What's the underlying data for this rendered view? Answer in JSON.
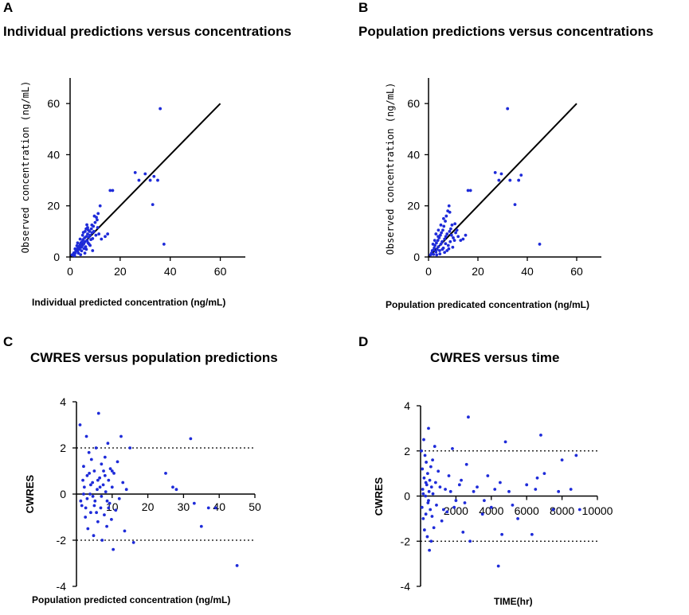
{
  "panels": [
    {
      "letter": "A",
      "title": "Individual predictions versus concentrations",
      "xlabel": "Individual predicted concentration (ng/mL)"
    },
    {
      "letter": "B",
      "title": "Population predictions versus concentrations",
      "xlabel": "Population predicated concentration (ng/mL)"
    },
    {
      "letter": "C",
      "title": "CWRES versus population predictions",
      "xlabel": "Population predicted concentration (ng/mL)"
    },
    {
      "letter": "D",
      "title": "CWRES versus time",
      "xlabel": "TIME(hr)"
    }
  ],
  "colors": {
    "points": "#1e2bd9",
    "line": "#000000",
    "axis": "#000000"
  },
  "chart_data": [
    {
      "type": "scatter",
      "title": "Individual predictions versus concentrations",
      "xlabel": "Individual predicted concentration (ng/mL)",
      "ylabel": "Observed concentration (ng/mL)",
      "xlim": [
        0,
        70
      ],
      "ylim": [
        0,
        70
      ],
      "xticks": [
        "0",
        "20",
        "40",
        "60"
      ],
      "yticks": [
        "0",
        "20",
        "40",
        "60"
      ],
      "reference_line": {
        "from": [
          0,
          0
        ],
        "to": [
          60,
          60
        ]
      },
      "points": [
        [
          0.8,
          0.8
        ],
        [
          1.2,
          1.0
        ],
        [
          1.5,
          1.6
        ],
        [
          2.0,
          1.5
        ],
        [
          2.3,
          2.5
        ],
        [
          2.6,
          3.0
        ],
        [
          3.0,
          2.2
        ],
        [
          3.2,
          3.6
        ],
        [
          3.5,
          4.2
        ],
        [
          3.8,
          3.0
        ],
        [
          4.0,
          4.8
        ],
        [
          4.3,
          5.5
        ],
        [
          4.5,
          3.8
        ],
        [
          4.8,
          6.0
        ],
        [
          5.0,
          4.5
        ],
        [
          5.2,
          6.8
        ],
        [
          5.5,
          5.2
        ],
        [
          5.8,
          7.5
        ],
        [
          6.0,
          6.0
        ],
        [
          6.2,
          4.0
        ],
        [
          6.5,
          8.0
        ],
        [
          6.8,
          6.5
        ],
        [
          7.0,
          9.0
        ],
        [
          7.2,
          5.5
        ],
        [
          7.5,
          7.8
        ],
        [
          7.8,
          10.0
        ],
        [
          8.0,
          8.5
        ],
        [
          8.3,
          6.8
        ],
        [
          8.5,
          11.0
        ],
        [
          8.8,
          9.5
        ],
        [
          9.0,
          7.2
        ],
        [
          9.3,
          12.0
        ],
        [
          9.5,
          10.0
        ],
        [
          10.0,
          13.5
        ],
        [
          10.3,
          8.5
        ],
        [
          10.5,
          15.5
        ],
        [
          11.0,
          11.5
        ],
        [
          11.2,
          17.0
        ],
        [
          11.5,
          9.0
        ],
        [
          12.0,
          20.0
        ],
        [
          3.0,
          5.5
        ],
        [
          4.0,
          7.0
        ],
        [
          5.0,
          8.5
        ],
        [
          6.0,
          10.0
        ],
        [
          7.0,
          11.5
        ],
        [
          6.5,
          3.0
        ],
        [
          8.0,
          4.5
        ],
        [
          9.0,
          2.5
        ],
        [
          2.0,
          3.2
        ],
        [
          1.8,
          0.5
        ],
        [
          3.3,
          1.5
        ],
        [
          4.6,
          2.4
        ],
        [
          5.6,
          3.3
        ],
        [
          7.3,
          10.5
        ],
        [
          8.7,
          12.5
        ],
        [
          12.5,
          7.0
        ],
        [
          14.0,
          8.0
        ],
        [
          15.0,
          9.0
        ],
        [
          16.0,
          26.0
        ],
        [
          17.0,
          26.0
        ],
        [
          26.0,
          33.0
        ],
        [
          27.5,
          30.0
        ],
        [
          30.0,
          32.5
        ],
        [
          32.0,
          30.0
        ],
        [
          33.0,
          20.5
        ],
        [
          33.5,
          31.5
        ],
        [
          35.0,
          30.0
        ],
        [
          36.0,
          58.0
        ],
        [
          37.5,
          5.0
        ],
        [
          5.3,
          9.6
        ],
        [
          6.7,
          12.6
        ],
        [
          9.7,
          16.0
        ],
        [
          10.8,
          14.5
        ],
        [
          7.6,
          5.0
        ],
        [
          2.7,
          4.4
        ],
        [
          4.2,
          0.9
        ],
        [
          5.9,
          1.5
        ],
        [
          6.4,
          11.0
        ]
      ]
    },
    {
      "type": "scatter",
      "title": "Population predictions versus concentrations",
      "xlabel": "Population predicated concentration (ng/mL)",
      "ylabel": "Observed concentration (ng/mL)",
      "xlim": [
        0,
        70
      ],
      "ylim": [
        0,
        70
      ],
      "xticks": [
        "0",
        "20",
        "40",
        "60"
      ],
      "yticks": [
        "0",
        "20",
        "40",
        "60"
      ],
      "reference_line": {
        "from": [
          0,
          0
        ],
        "to": [
          60,
          60
        ]
      },
      "points": [
        [
          0.8,
          0.8
        ],
        [
          1.2,
          1.5
        ],
        [
          1.5,
          2.5
        ],
        [
          2.0,
          1.0
        ],
        [
          2.3,
          3.5
        ],
        [
          2.6,
          4.5
        ],
        [
          3.0,
          2.0
        ],
        [
          3.2,
          5.5
        ],
        [
          3.5,
          3.0
        ],
        [
          3.8,
          6.5
        ],
        [
          4.0,
          4.0
        ],
        [
          4.3,
          7.5
        ],
        [
          4.5,
          2.5
        ],
        [
          4.8,
          8.5
        ],
        [
          5.0,
          5.0
        ],
        [
          5.2,
          9.5
        ],
        [
          5.5,
          6.0
        ],
        [
          5.8,
          10.5
        ],
        [
          6.0,
          3.5
        ],
        [
          6.2,
          12.0
        ],
        [
          6.5,
          7.0
        ],
        [
          6.8,
          14.0
        ],
        [
          7.0,
          8.0
        ],
        [
          7.2,
          16.0
        ],
        [
          7.5,
          9.0
        ],
        [
          7.8,
          18.0
        ],
        [
          8.0,
          4.5
        ],
        [
          8.3,
          20.0
        ],
        [
          8.5,
          10.0
        ],
        [
          8.8,
          6.0
        ],
        [
          9.0,
          11.0
        ],
        [
          9.3,
          8.5
        ],
        [
          9.5,
          12.5
        ],
        [
          10.0,
          7.5
        ],
        [
          10.5,
          6.5
        ],
        [
          11.0,
          9.5
        ],
        [
          12.0,
          8.0
        ],
        [
          13.0,
          6.5
        ],
        [
          14.0,
          7.0
        ],
        [
          15.0,
          8.5
        ],
        [
          3.0,
          9.0
        ],
        [
          4.0,
          10.5
        ],
        [
          5.0,
          12.5
        ],
        [
          2.5,
          6.5
        ],
        [
          1.8,
          5.0
        ],
        [
          6.5,
          1.8
        ],
        [
          7.5,
          2.5
        ],
        [
          3.3,
          0.8
        ],
        [
          5.6,
          3.0
        ],
        [
          6.9,
          5.2
        ],
        [
          8.2,
          3.2
        ],
        [
          9.8,
          3.8
        ],
        [
          4.6,
          1.2
        ],
        [
          2.1,
          2.8
        ],
        [
          16.0,
          26.0
        ],
        [
          17.0,
          26.0
        ],
        [
          27.0,
          33.0
        ],
        [
          28.5,
          30.0
        ],
        [
          29.5,
          32.5
        ],
        [
          32.0,
          58.0
        ],
        [
          33.0,
          30.0
        ],
        [
          35.0,
          20.5
        ],
        [
          36.5,
          30.0
        ],
        [
          37.5,
          32.0
        ],
        [
          45.0,
          5.0
        ],
        [
          10.7,
          13.0
        ],
        [
          11.5,
          10.5
        ],
        [
          6.1,
          15.0
        ],
        [
          8.6,
          17.5
        ],
        [
          3.9,
          8.0
        ]
      ]
    },
    {
      "type": "scatter",
      "title": "CWRES versus population predictions",
      "xlabel": "Population predicted concentration (ng/mL)",
      "ylabel": "CWRES",
      "xlim": [
        0,
        50
      ],
      "ylim": [
        -4,
        4
      ],
      "xticks": [
        "10",
        "20",
        "30",
        "40",
        "50"
      ],
      "yticks": [
        "4",
        "2",
        "0",
        "-2",
        "-4"
      ],
      "reference_lines": [
        2,
        -2
      ],
      "points": [
        [
          1.0,
          3.0
        ],
        [
          1.5,
          -0.5
        ],
        [
          2.0,
          1.2
        ],
        [
          2.2,
          0.3
        ],
        [
          2.5,
          -1.0
        ],
        [
          2.8,
          2.5
        ],
        [
          3.0,
          0.8
        ],
        [
          3.2,
          -1.5
        ],
        [
          3.5,
          1.8
        ],
        [
          3.8,
          0.0
        ],
        [
          4.0,
          -0.8
        ],
        [
          4.2,
          1.5
        ],
        [
          4.5,
          0.5
        ],
        [
          4.8,
          -1.8
        ],
        [
          5.0,
          1.0
        ],
        [
          5.2,
          -0.3
        ],
        [
          5.5,
          2.0
        ],
        [
          5.8,
          0.2
        ],
        [
          6.0,
          -1.2
        ],
        [
          6.2,
          3.5
        ],
        [
          6.5,
          0.7
        ],
        [
          6.8,
          -0.6
        ],
        [
          7.0,
          1.3
        ],
        [
          7.2,
          -2.0
        ],
        [
          7.5,
          0.4
        ],
        [
          7.8,
          -0.9
        ],
        [
          8.0,
          1.6
        ],
        [
          8.2,
          0.1
        ],
        [
          8.5,
          -1.4
        ],
        [
          8.8,
          2.2
        ],
        [
          9.0,
          0.6
        ],
        [
          9.3,
          -0.4
        ],
        [
          9.5,
          1.1
        ],
        [
          9.8,
          -1.1
        ],
        [
          10.0,
          0.3
        ],
        [
          10.3,
          -2.4
        ],
        [
          10.5,
          0.9
        ],
        [
          11.0,
          -0.7
        ],
        [
          11.5,
          1.4
        ],
        [
          12.0,
          -0.2
        ],
        [
          12.5,
          2.5
        ],
        [
          13.0,
          0.5
        ],
        [
          13.5,
          -1.6
        ],
        [
          14.0,
          0.2
        ],
        [
          15.0,
          2.0
        ],
        [
          16.0,
          -2.1
        ],
        [
          2.0,
          0.0
        ],
        [
          3.0,
          -0.2
        ],
        [
          4.0,
          0.4
        ],
        [
          5.0,
          -0.5
        ],
        [
          6.0,
          0.6
        ],
        [
          7.0,
          -0.1
        ],
        [
          8.0,
          0.8
        ],
        [
          9.0,
          -0.6
        ],
        [
          10.0,
          1.0
        ],
        [
          1.2,
          -0.3
        ],
        [
          1.8,
          0.6
        ],
        [
          2.6,
          -0.6
        ],
        [
          3.6,
          0.9
        ],
        [
          4.6,
          -0.1
        ],
        [
          5.6,
          -0.8
        ],
        [
          6.6,
          0.3
        ],
        [
          7.6,
          1.0
        ],
        [
          8.6,
          -0.3
        ],
        [
          25.0,
          0.9
        ],
        [
          27.0,
          0.3
        ],
        [
          28.0,
          0.2
        ],
        [
          32.0,
          2.4
        ],
        [
          33.0,
          -0.4
        ],
        [
          35.0,
          -1.4
        ],
        [
          37.0,
          -0.6
        ],
        [
          39.0,
          -0.6
        ],
        [
          45.0,
          -3.1
        ]
      ]
    },
    {
      "type": "scatter",
      "title": "CWRES versus time",
      "xlabel": "TIME(hr)",
      "ylabel": "CWRES",
      "xlim": [
        0,
        10000
      ],
      "ylim": [
        -4,
        4
      ],
      "xticks": [
        "2000",
        "4000",
        "6000",
        "8000",
        "10000"
      ],
      "yticks": [
        "4",
        "2",
        "0",
        "-2",
        "-4"
      ],
      "reference_lines": [
        2,
        -2
      ],
      "points": [
        [
          50,
          2.0
        ],
        [
          80,
          -0.5
        ],
        [
          100,
          1.2
        ],
        [
          120,
          0.3
        ],
        [
          150,
          -1.0
        ],
        [
          180,
          2.5
        ],
        [
          200,
          0.8
        ],
        [
          220,
          -1.5
        ],
        [
          250,
          1.8
        ],
        [
          280,
          0.0
        ],
        [
          300,
          -0.8
        ],
        [
          320,
          1.5
        ],
        [
          350,
          0.5
        ],
        [
          380,
          -1.8
        ],
        [
          400,
          1.0
        ],
        [
          420,
          -0.3
        ],
        [
          450,
          3.0
        ],
        [
          480,
          0.2
        ],
        [
          500,
          -2.4
        ],
        [
          520,
          0.7
        ],
        [
          550,
          -0.6
        ],
        [
          580,
          1.3
        ],
        [
          600,
          -2.0
        ],
        [
          620,
          0.4
        ],
        [
          650,
          -0.9
        ],
        [
          680,
          1.6
        ],
        [
          700,
          0.1
        ],
        [
          750,
          -1.4
        ],
        [
          800,
          2.2
        ],
        [
          850,
          0.6
        ],
        [
          900,
          -0.4
        ],
        [
          1000,
          1.1
        ],
        [
          1200,
          -1.1
        ],
        [
          1400,
          0.3
        ],
        [
          1500,
          -0.7
        ],
        [
          1600,
          0.9
        ],
        [
          1800,
          2.1
        ],
        [
          2000,
          -0.2
        ],
        [
          2200,
          0.5
        ],
        [
          2400,
          -1.6
        ],
        [
          2600,
          1.4
        ],
        [
          2700,
          3.5
        ],
        [
          2800,
          -2.0
        ],
        [
          3000,
          0.2
        ],
        [
          3500,
          -0.8
        ],
        [
          3800,
          0.9
        ],
        [
          4000,
          -0.5
        ],
        [
          4500,
          0.6
        ],
        [
          4600,
          -1.7
        ],
        [
          4800,
          2.4
        ],
        [
          5000,
          0.2
        ],
        [
          5500,
          -1.0
        ],
        [
          6000,
          0.5
        ],
        [
          6300,
          -1.7
        ],
        [
          6500,
          0.3
        ],
        [
          6800,
          2.7
        ],
        [
          7000,
          1.0
        ],
        [
          7500,
          -0.6
        ],
        [
          7800,
          0.2
        ],
        [
          8000,
          1.6
        ],
        [
          8500,
          0.3
        ],
        [
          8800,
          1.8
        ],
        [
          9000,
          -0.6
        ],
        [
          4400,
          -3.1
        ],
        [
          1100,
          0.4
        ],
        [
          1300,
          -0.6
        ],
        [
          1700,
          0.2
        ],
        [
          1900,
          -0.5
        ],
        [
          2300,
          0.7
        ],
        [
          2500,
          -0.3
        ],
        [
          3200,
          0.4
        ],
        [
          3600,
          -0.2
        ],
        [
          4200,
          0.3
        ],
        [
          5200,
          -0.4
        ],
        [
          6600,
          0.8
        ],
        [
          150,
          0.1
        ],
        [
          300,
          0.6
        ],
        [
          450,
          -0.2
        ]
      ]
    }
  ]
}
